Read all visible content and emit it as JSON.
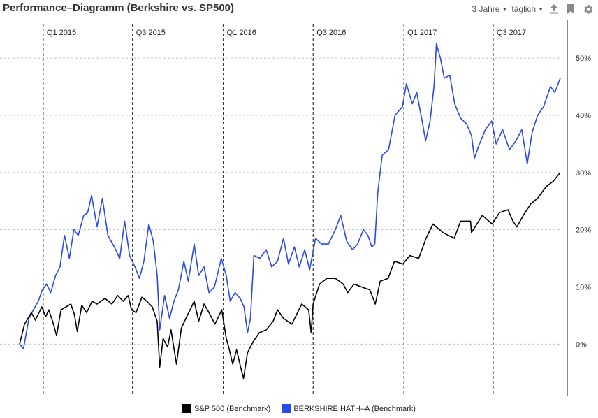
{
  "header": {
    "title": "Performance–Diagramm (Berkshire vs. SP500)",
    "range_label": "3 Jahre",
    "interval_label": "täglich",
    "icons": [
      "export-icon",
      "bookmark-icon",
      "gear-icon"
    ]
  },
  "colors": {
    "sp500": "#000000",
    "berkshire": "#2a4ae8",
    "grid": "#c8c8c8",
    "divider": "#111111"
  },
  "chart_data": {
    "type": "line",
    "title": "Performance–Diagramm (Berkshire vs. SP500)",
    "y_unit": "%",
    "ylim": [
      -9,
      56
    ],
    "y_ticks": [
      0,
      10,
      20,
      30,
      40,
      50
    ],
    "y_tick_labels": [
      "0%",
      "10%",
      "20%",
      "30%",
      "40%",
      "50%"
    ],
    "x_range": [
      "2014-11-14",
      "2017-11-14"
    ],
    "quarter_markers": [
      {
        "label": "Q1 2015",
        "date": "2015-01-01"
      },
      {
        "label": "Q3 2015",
        "date": "2015-07-01"
      },
      {
        "label": "Q1 2016",
        "date": "2016-01-01"
      },
      {
        "label": "Q3 2016",
        "date": "2016-07-01"
      },
      {
        "label": "Q1 2017",
        "date": "2017-01-01"
      },
      {
        "label": "Q3 2017",
        "date": "2017-07-01"
      }
    ],
    "grid": true,
    "legend_position": "bottom-center",
    "series": [
      {
        "name": "S&P 500  (Benchmark)",
        "points": [
          [
            "2014-11-14",
            0
          ],
          [
            "2014-11-24",
            3.5
          ],
          [
            "2014-12-08",
            5.5
          ],
          [
            "2014-12-16",
            4.2
          ],
          [
            "2014-12-29",
            6.5
          ],
          [
            "2015-01-06",
            4.8
          ],
          [
            "2015-01-12",
            6.0
          ],
          [
            "2015-01-20",
            4.0
          ],
          [
            "2015-01-28",
            1.5
          ],
          [
            "2015-02-06",
            6.0
          ],
          [
            "2015-02-16",
            6.5
          ],
          [
            "2015-02-26",
            7.0
          ],
          [
            "2015-03-05",
            5.2
          ],
          [
            "2015-03-11",
            2.2
          ],
          [
            "2015-03-20",
            6.8
          ],
          [
            "2015-03-30",
            5.5
          ],
          [
            "2015-04-10",
            7.5
          ],
          [
            "2015-04-20",
            7.0
          ],
          [
            "2015-05-06",
            8.0
          ],
          [
            "2015-05-20",
            7.0
          ],
          [
            "2015-06-01",
            8.5
          ],
          [
            "2015-06-12",
            7.5
          ],
          [
            "2015-06-22",
            8.5
          ],
          [
            "2015-06-29",
            6.0
          ],
          [
            "2015-07-08",
            5.5
          ],
          [
            "2015-07-20",
            8.2
          ],
          [
            "2015-07-30",
            7.5
          ],
          [
            "2015-08-10",
            6.5
          ],
          [
            "2015-08-20",
            4.0
          ],
          [
            "2015-08-25",
            -4.0
          ],
          [
            "2015-09-01",
            1.0
          ],
          [
            "2015-09-10",
            -0.5
          ],
          [
            "2015-09-17",
            2.5
          ],
          [
            "2015-09-28",
            -3.5
          ],
          [
            "2015-10-08",
            2.8
          ],
          [
            "2015-10-20",
            5.0
          ],
          [
            "2015-11-03",
            7.5
          ],
          [
            "2015-11-12",
            4.0
          ],
          [
            "2015-11-23",
            7.0
          ],
          [
            "2015-12-03",
            5.5
          ],
          [
            "2015-12-15",
            3.5
          ],
          [
            "2015-12-29",
            6.0
          ],
          [
            "2016-01-07",
            1.0
          ],
          [
            "2016-01-12",
            -0.5
          ],
          [
            "2016-01-20",
            -3.5
          ],
          [
            "2016-01-28",
            -1.0
          ],
          [
            "2016-02-05",
            -4.0
          ],
          [
            "2016-02-11",
            -6.0
          ],
          [
            "2016-02-19",
            -1.5
          ],
          [
            "2016-03-02",
            0.5
          ],
          [
            "2016-03-14",
            2.0
          ],
          [
            "2016-03-28",
            2.5
          ],
          [
            "2016-04-11",
            4.0
          ],
          [
            "2016-04-20",
            6.0
          ],
          [
            "2016-05-02",
            4.5
          ],
          [
            "2016-05-19",
            3.5
          ],
          [
            "2016-06-08",
            7.0
          ],
          [
            "2016-06-22",
            6.0
          ],
          [
            "2016-06-27",
            2.0
          ],
          [
            "2016-07-01",
            7.0
          ],
          [
            "2016-07-14",
            10.5
          ],
          [
            "2016-07-29",
            11.5
          ],
          [
            "2016-08-15",
            11.5
          ],
          [
            "2016-08-31",
            10.5
          ],
          [
            "2016-09-09",
            9.0
          ],
          [
            "2016-09-22",
            10.5
          ],
          [
            "2016-10-07",
            10.0
          ],
          [
            "2016-10-24",
            9.5
          ],
          [
            "2016-11-04",
            7.0
          ],
          [
            "2016-11-14",
            11.0
          ],
          [
            "2016-11-30",
            11.5
          ],
          [
            "2016-12-13",
            14.5
          ],
          [
            "2016-12-30",
            14.0
          ],
          [
            "2017-01-13",
            15.5
          ],
          [
            "2017-01-31",
            15.0
          ],
          [
            "2017-02-15",
            18.5
          ],
          [
            "2017-03-01",
            21.0
          ],
          [
            "2017-03-21",
            19.5
          ],
          [
            "2017-04-13",
            18.5
          ],
          [
            "2017-04-26",
            21.5
          ],
          [
            "2017-05-16",
            21.5
          ],
          [
            "2017-05-18",
            19.5
          ],
          [
            "2017-06-09",
            22.5
          ],
          [
            "2017-06-29",
            21.0
          ],
          [
            "2017-07-14",
            23.0
          ],
          [
            "2017-07-31",
            23.5
          ],
          [
            "2017-08-10",
            21.5
          ],
          [
            "2017-08-18",
            20.5
          ],
          [
            "2017-08-31",
            22.5
          ],
          [
            "2017-09-15",
            24.5
          ],
          [
            "2017-09-29",
            25.5
          ],
          [
            "2017-10-16",
            27.5
          ],
          [
            "2017-10-31",
            28.5
          ],
          [
            "2017-11-14",
            30.0
          ]
        ]
      },
      {
        "name": "BERKSHIRE HATH–A (Benchmark)",
        "points": [
          [
            "2014-11-14",
            0
          ],
          [
            "2014-11-22",
            -0.8
          ],
          [
            "2014-12-03",
            4.5
          ],
          [
            "2014-12-12",
            6.0
          ],
          [
            "2014-12-22",
            7.5
          ],
          [
            "2014-12-30",
            9.5
          ],
          [
            "2015-01-08",
            10.5
          ],
          [
            "2015-01-16",
            9.0
          ],
          [
            "2015-01-26",
            12.0
          ],
          [
            "2015-02-04",
            13.5
          ],
          [
            "2015-02-13",
            19.0
          ],
          [
            "2015-02-23",
            15.0
          ],
          [
            "2015-03-04",
            20.0
          ],
          [
            "2015-03-13",
            19.0
          ],
          [
            "2015-03-24",
            22.5
          ],
          [
            "2015-04-01",
            23.0
          ],
          [
            "2015-04-09",
            26.0
          ],
          [
            "2015-04-20",
            20.5
          ],
          [
            "2015-05-01",
            25.5
          ],
          [
            "2015-05-12",
            19.0
          ],
          [
            "2015-05-25",
            17.0
          ],
          [
            "2015-06-05",
            15.0
          ],
          [
            "2015-06-15",
            21.5
          ],
          [
            "2015-06-25",
            15.5
          ],
          [
            "2015-07-06",
            13.5
          ],
          [
            "2015-07-15",
            11.5
          ],
          [
            "2015-07-24",
            14.5
          ],
          [
            "2015-08-03",
            21.0
          ],
          [
            "2015-08-12",
            18.0
          ],
          [
            "2015-08-20",
            12.0
          ],
          [
            "2015-08-25",
            2.5
          ],
          [
            "2015-09-04",
            8.5
          ],
          [
            "2015-09-14",
            4.5
          ],
          [
            "2015-09-23",
            7.5
          ],
          [
            "2015-10-02",
            9.5
          ],
          [
            "2015-10-13",
            14.5
          ],
          [
            "2015-10-22",
            11.0
          ],
          [
            "2015-11-03",
            17.5
          ],
          [
            "2015-11-12",
            12.0
          ],
          [
            "2015-11-23",
            13.5
          ],
          [
            "2015-12-03",
            9.0
          ],
          [
            "2015-12-14",
            10.0
          ],
          [
            "2015-12-28",
            15.0
          ],
          [
            "2016-01-07",
            12.0
          ],
          [
            "2016-01-15",
            7.5
          ],
          [
            "2016-01-25",
            9.0
          ],
          [
            "2016-02-04",
            8.0
          ],
          [
            "2016-02-12",
            6.5
          ],
          [
            "2016-02-19",
            2.0
          ],
          [
            "2016-02-25",
            4.5
          ],
          [
            "2016-03-03",
            15.5
          ],
          [
            "2016-03-15",
            15.0
          ],
          [
            "2016-03-28",
            16.5
          ],
          [
            "2016-04-08",
            13.5
          ],
          [
            "2016-04-20",
            14.5
          ],
          [
            "2016-05-02",
            18.5
          ],
          [
            "2016-05-12",
            14.0
          ],
          [
            "2016-05-24",
            17.0
          ],
          [
            "2016-06-03",
            13.5
          ],
          [
            "2016-06-14",
            16.5
          ],
          [
            "2016-06-24",
            13.0
          ],
          [
            "2016-07-06",
            18.5
          ],
          [
            "2016-07-18",
            17.5
          ],
          [
            "2016-08-01",
            17.5
          ],
          [
            "2016-08-15",
            20.0
          ],
          [
            "2016-08-26",
            22.5
          ],
          [
            "2016-09-07",
            18.0
          ],
          [
            "2016-09-19",
            16.5
          ],
          [
            "2016-09-29",
            17.5
          ],
          [
            "2016-10-11",
            20.0
          ],
          [
            "2016-10-20",
            19.0
          ],
          [
            "2016-10-28",
            17.0
          ],
          [
            "2016-11-03",
            17.5
          ],
          [
            "2016-11-09",
            26.5
          ],
          [
            "2016-11-18",
            33.0
          ],
          [
            "2016-12-01",
            34.0
          ],
          [
            "2016-12-14",
            40.0
          ],
          [
            "2016-12-29",
            41.5
          ],
          [
            "2017-01-06",
            45.5
          ],
          [
            "2017-01-18",
            42.0
          ],
          [
            "2017-01-27",
            44.0
          ],
          [
            "2017-02-08",
            38.5
          ],
          [
            "2017-02-14",
            35.5
          ],
          [
            "2017-02-23",
            39.0
          ],
          [
            "2017-03-03",
            45.0
          ],
          [
            "2017-03-08",
            52.5
          ],
          [
            "2017-03-16",
            50.0
          ],
          [
            "2017-03-24",
            46.5
          ],
          [
            "2017-04-04",
            47.0
          ],
          [
            "2017-04-14",
            42.0
          ],
          [
            "2017-04-26",
            39.5
          ],
          [
            "2017-05-08",
            38.5
          ],
          [
            "2017-05-18",
            36.5
          ],
          [
            "2017-05-24",
            32.5
          ],
          [
            "2017-06-01",
            34.5
          ],
          [
            "2017-06-15",
            37.5
          ],
          [
            "2017-06-28",
            39.0
          ],
          [
            "2017-07-07",
            35.0
          ],
          [
            "2017-07-20",
            37.5
          ],
          [
            "2017-08-03",
            34.0
          ],
          [
            "2017-08-16",
            35.5
          ],
          [
            "2017-08-28",
            37.5
          ],
          [
            "2017-09-08",
            31.5
          ],
          [
            "2017-09-18",
            37.0
          ],
          [
            "2017-09-29",
            40.0
          ],
          [
            "2017-10-11",
            41.5
          ],
          [
            "2017-10-25",
            45.0
          ],
          [
            "2017-11-03",
            44.0
          ],
          [
            "2017-11-14",
            46.5
          ]
        ]
      }
    ]
  },
  "legend": [
    {
      "label": "S&P 500  (Benchmark)",
      "color": "#000000"
    },
    {
      "label": "BERKSHIRE HATH–A (Benchmark)",
      "color": "#2a4ae8"
    }
  ]
}
